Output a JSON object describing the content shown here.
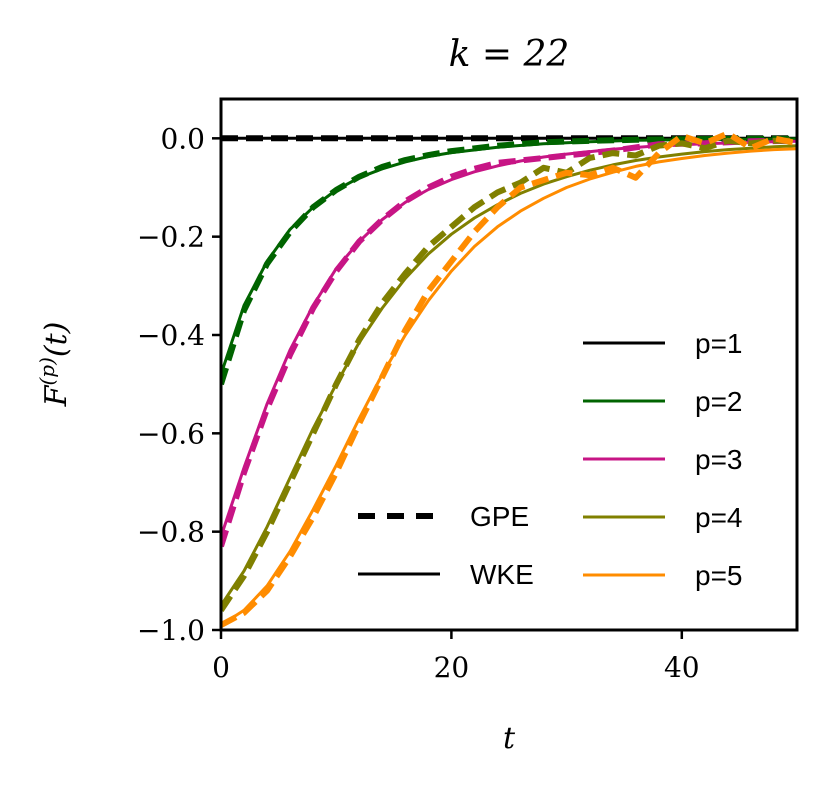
{
  "chart_data": {
    "type": "line",
    "title": "k = 22",
    "xlabel": "t",
    "ylabel": "F(p)(t)",
    "xlim": [
      0,
      50
    ],
    "ylim": [
      -1.0,
      0.08
    ],
    "x_ticks": [
      0,
      20,
      40
    ],
    "x_tick_labels": [
      "0",
      "20",
      "40"
    ],
    "y_ticks": [
      0.0,
      -0.2,
      -0.4,
      -0.6,
      -0.8,
      -1.0
    ],
    "y_tick_labels": [
      "0.0",
      "−0.2",
      "−0.4",
      "−0.6",
      "−0.8",
      "−1.0"
    ],
    "line_styles": [
      {
        "name": "GPE",
        "style": "dashed"
      },
      {
        "name": "WKE",
        "style": "solid"
      }
    ],
    "series": [
      {
        "name": "p=1",
        "color": "#000000",
        "x": [
          0,
          10,
          20,
          30,
          40,
          50
        ],
        "wke": [
          0,
          0,
          0,
          0,
          0,
          0
        ],
        "gpe": [
          0,
          0,
          0,
          0,
          0,
          0
        ]
      },
      {
        "name": "p=2",
        "color": "#006400",
        "x": [
          0,
          2,
          4,
          6,
          8,
          10,
          12,
          14,
          16,
          18,
          20,
          24,
          28,
          32,
          36,
          40,
          45,
          50
        ],
        "wke": [
          -0.48,
          -0.34,
          -0.25,
          -0.185,
          -0.14,
          -0.105,
          -0.08,
          -0.062,
          -0.048,
          -0.037,
          -0.029,
          -0.018,
          -0.011,
          -0.007,
          -0.004,
          -0.003,
          -0.002,
          -0.001
        ],
        "gpe": [
          -0.5,
          -0.35,
          -0.255,
          -0.19,
          -0.14,
          -0.105,
          -0.078,
          -0.058,
          -0.044,
          -0.034,
          -0.026,
          -0.015,
          -0.008,
          -0.005,
          -0.003,
          -0.002,
          -0.001,
          -0.001
        ]
      },
      {
        "name": "p=3",
        "color": "#c71585",
        "x": [
          0,
          2,
          4,
          6,
          8,
          10,
          12,
          14,
          16,
          18,
          20,
          22,
          24,
          26,
          28,
          30,
          34,
          38,
          42,
          46,
          50
        ],
        "wke": [
          -0.81,
          -0.67,
          -0.54,
          -0.43,
          -0.34,
          -0.265,
          -0.21,
          -0.165,
          -0.13,
          -0.104,
          -0.084,
          -0.068,
          -0.056,
          -0.046,
          -0.038,
          -0.032,
          -0.022,
          -0.015,
          -0.011,
          -0.008,
          -0.006
        ],
        "gpe": [
          -0.83,
          -0.68,
          -0.55,
          -0.44,
          -0.345,
          -0.27,
          -0.21,
          -0.165,
          -0.128,
          -0.1,
          -0.078,
          -0.062,
          -0.05,
          -0.045,
          -0.04,
          -0.035,
          -0.025,
          -0.012,
          -0.01,
          -0.006,
          -0.005
        ]
      },
      {
        "name": "p=4",
        "color": "#808000",
        "x": [
          0,
          2,
          4,
          6,
          8,
          10,
          12,
          14,
          16,
          18,
          20,
          22,
          24,
          26,
          28,
          30,
          32,
          34,
          36,
          38,
          40,
          42,
          44,
          46,
          48,
          50
        ],
        "wke": [
          -0.95,
          -0.88,
          -0.79,
          -0.69,
          -0.59,
          -0.5,
          -0.415,
          -0.345,
          -0.285,
          -0.235,
          -0.195,
          -0.162,
          -0.135,
          -0.112,
          -0.093,
          -0.078,
          -0.065,
          -0.054,
          -0.045,
          -0.038,
          -0.032,
          -0.027,
          -0.023,
          -0.02,
          -0.017,
          -0.015
        ],
        "gpe": [
          -0.96,
          -0.89,
          -0.8,
          -0.7,
          -0.6,
          -0.5,
          -0.41,
          -0.335,
          -0.275,
          -0.22,
          -0.18,
          -0.14,
          -0.11,
          -0.09,
          -0.06,
          -0.07,
          -0.04,
          -0.03,
          -0.035,
          -0.015,
          -0.01,
          -0.02,
          -0.005,
          -0.01,
          -0.005,
          -0.005
        ]
      },
      {
        "name": "p=5",
        "color": "#ff8c00",
        "x": [
          0,
          2,
          4,
          6,
          8,
          10,
          12,
          14,
          16,
          18,
          20,
          22,
          24,
          26,
          28,
          30,
          32,
          34,
          36,
          38,
          40,
          42,
          44,
          46,
          48,
          50
        ],
        "wke": [
          -0.99,
          -0.96,
          -0.91,
          -0.84,
          -0.755,
          -0.665,
          -0.57,
          -0.48,
          -0.4,
          -0.33,
          -0.27,
          -0.22,
          -0.18,
          -0.148,
          -0.122,
          -0.1,
          -0.083,
          -0.069,
          -0.057,
          -0.048,
          -0.041,
          -0.035,
          -0.03,
          -0.026,
          -0.023,
          -0.021
        ],
        "gpe": [
          -0.99,
          -0.965,
          -0.92,
          -0.85,
          -0.77,
          -0.68,
          -0.58,
          -0.485,
          -0.39,
          -0.31,
          -0.25,
          -0.19,
          -0.14,
          -0.1,
          -0.085,
          -0.07,
          -0.075,
          -0.06,
          -0.08,
          -0.03,
          0.005,
          -0.01,
          0.01,
          -0.02,
          0.0,
          -0.01
        ]
      }
    ]
  }
}
